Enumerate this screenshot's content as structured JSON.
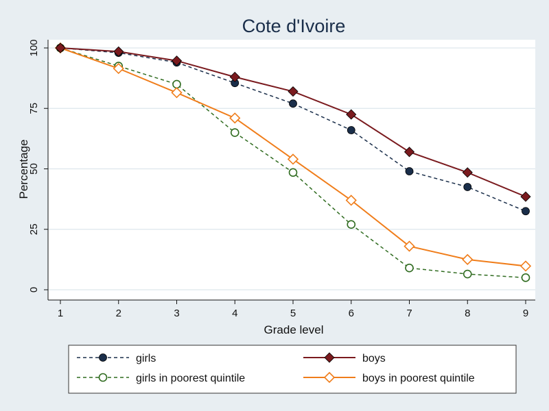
{
  "chart_data": {
    "type": "line",
    "title": "Cote d'Ivoire",
    "xlabel": "Grade level",
    "ylabel": "Percentage",
    "x": [
      1,
      2,
      3,
      4,
      5,
      6,
      7,
      8,
      9
    ],
    "xlim": [
      1,
      9
    ],
    "ylim": [
      0,
      100
    ],
    "xticks": [
      "1",
      "2",
      "3",
      "4",
      "5",
      "6",
      "7",
      "8",
      "9"
    ],
    "yticks": [
      "0",
      "25",
      "50",
      "75",
      "100"
    ],
    "grid": true,
    "legend_position": "bottom",
    "series": [
      {
        "name": "girls",
        "values": [
          100,
          98.0,
          94.0,
          85.5,
          77.0,
          66.0,
          49.0,
          42.5,
          32.5
        ],
        "color": "#1a2e4a",
        "dash": "dashed",
        "marker": "circle-filled"
      },
      {
        "name": "boys",
        "values": [
          100,
          98.5,
          94.7,
          88.0,
          82.0,
          72.5,
          57.0,
          48.5,
          38.5
        ],
        "color": "#7a1a1e",
        "dash": "solid",
        "marker": "diamond-filled"
      },
      {
        "name": "girls in poorest quintile",
        "values": [
          100,
          92.5,
          85.0,
          65.0,
          48.5,
          27.0,
          9.0,
          6.5,
          5.0
        ],
        "color": "#2f6b1f",
        "dash": "dashed",
        "marker": "circle-hollow"
      },
      {
        "name": "boys in poorest quintile",
        "values": [
          100,
          91.5,
          81.5,
          71.0,
          54.0,
          37.0,
          18.0,
          12.5,
          9.8
        ],
        "color": "#f07d1a",
        "dash": "solid",
        "marker": "diamond-hollow"
      }
    ]
  }
}
